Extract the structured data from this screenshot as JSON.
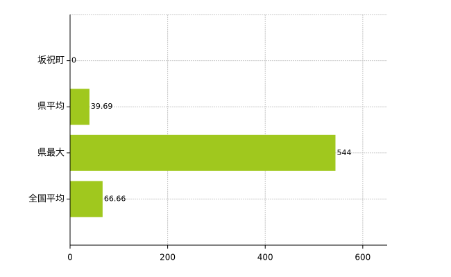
{
  "chart_data": {
    "type": "bar",
    "orientation": "horizontal",
    "categories": [
      "坂祝町",
      "県平均",
      "県最大",
      "全国平均"
    ],
    "values": [
      0,
      39.69,
      544,
      66.66
    ],
    "color": "#a0c81e",
    "xlim": [
      0,
      650
    ],
    "xticks": [
      0,
      200,
      400,
      600
    ],
    "grid": true
  }
}
